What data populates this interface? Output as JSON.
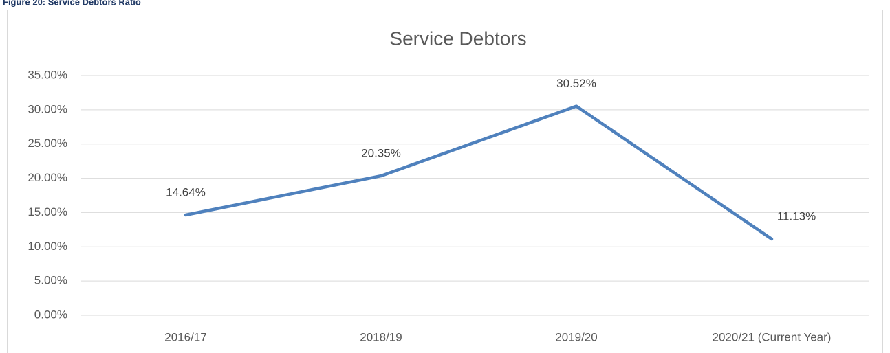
{
  "caption": "Figure 20: Service Debtors Ratio",
  "chart_data": {
    "type": "line",
    "title": "Service Debtors",
    "categories": [
      "2016/17",
      "2018/19",
      "2019/20",
      "2020/21 (Current Year)"
    ],
    "series": [
      {
        "name": "Service Debtors",
        "color": "#4f81bd",
        "values": [
          14.64,
          20.35,
          30.52,
          11.13
        ],
        "value_labels": [
          "14.64%",
          "20.35%",
          "30.52%",
          "11.13%"
        ]
      }
    ],
    "ylim": [
      0,
      35
    ],
    "yticks": [
      {
        "value": 0,
        "label": "0.00%"
      },
      {
        "value": 5,
        "label": "5.00%"
      },
      {
        "value": 10,
        "label": "10.00%"
      },
      {
        "value": 15,
        "label": "15.00%"
      },
      {
        "value": 20,
        "label": "20.00%"
      },
      {
        "value": 25,
        "label": "25.00%"
      },
      {
        "value": 30,
        "label": "30.00%"
      },
      {
        "value": 35,
        "label": "35.00%"
      }
    ],
    "grid": true
  }
}
